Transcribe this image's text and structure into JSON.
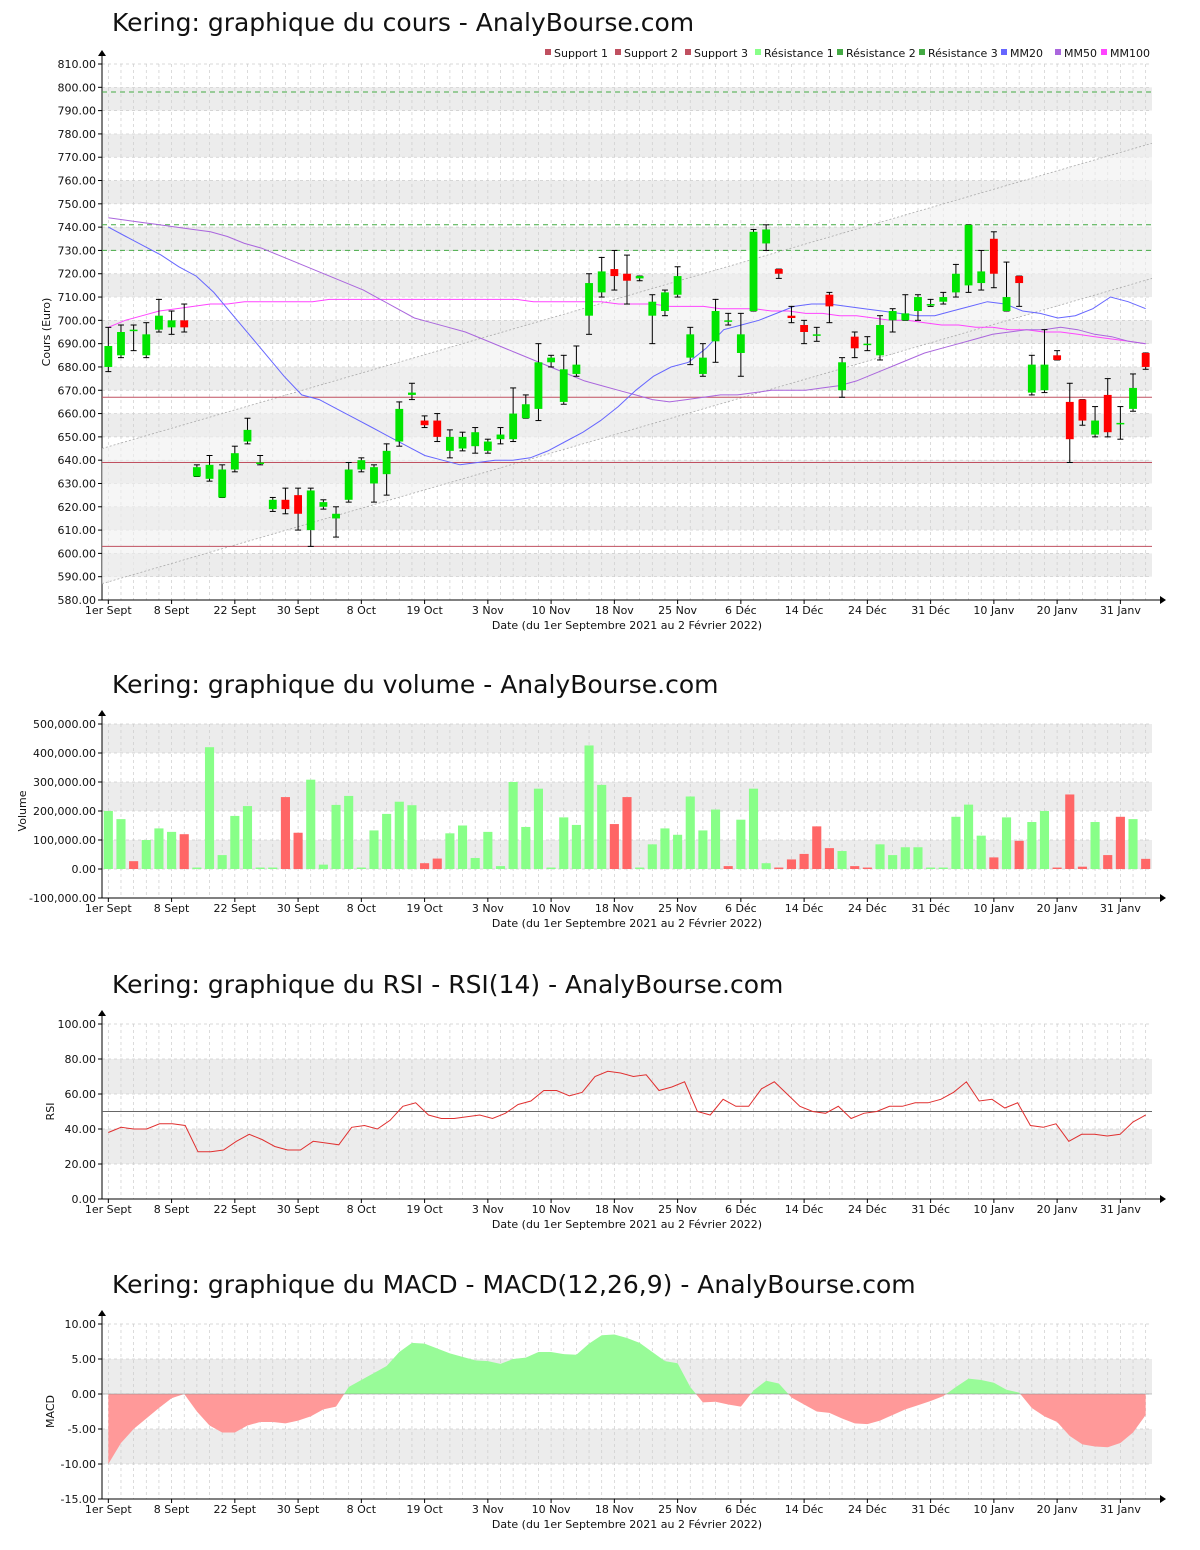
{
  "colors": {
    "up": "#00e400",
    "down": "#ff0000",
    "vol_up": "#88ff88",
    "vol_down": "#ff6666",
    "support": "#c05060",
    "resistance": "#44aa44",
    "mm20": "#6666ff",
    "mm50": "#aa66dd",
    "mm100": "#ff44ff",
    "rsi": "#e03030",
    "macd_pos": "#98fb98",
    "macd_neg": "#ff9999",
    "band_shade": "#ececec",
    "grid": "#cccccc"
  },
  "date_labels": [
    "1er Sept",
    "8 Sept",
    "22 Sept",
    "30 Sept",
    "8 Oct",
    "19 Oct",
    "3 Nov",
    "10 Nov",
    "18 Nov",
    "25 Nov",
    "6 Déc",
    "14 Déc",
    "24 Déc",
    "31 Déc",
    "10 Janv",
    "20 Janv",
    "31 Janv"
  ],
  "date_label_index": [
    0,
    5,
    10,
    15,
    20,
    25,
    30,
    35,
    40,
    45,
    50,
    55,
    60,
    65,
    70,
    75,
    80
  ],
  "xlabel": "Date (du 1er Septembre 2021 au 2 Février 2022)",
  "chart_data": [
    {
      "type": "candlestick",
      "title": "Kering: graphique du cours - AnalyBourse.com",
      "ylabel": "Cours (Euro)",
      "ylim": [
        580,
        810
      ],
      "yticks": [
        "580.00",
        "590.00",
        "600.00",
        "610.00",
        "620.00",
        "630.00",
        "640.00",
        "650.00",
        "660.00",
        "670.00",
        "680.00",
        "690.00",
        "700.00",
        "710.00",
        "720.00",
        "730.00",
        "740.00",
        "750.00",
        "760.00",
        "770.00",
        "780.00",
        "790.00",
        "800.00",
        "810.00"
      ],
      "legend": [
        "Support 1",
        "Support 2",
        "Support 3",
        "Résistance 1",
        "Résistance 2",
        "Résistance 3",
        "MM20",
        "MM50",
        "MM100"
      ],
      "legend_placement": "top-right",
      "support_levels": [
        667,
        639,
        603
      ],
      "resistance_levels": [
        730,
        741,
        798
      ],
      "trend_channel": {
        "lower": [
          587,
          718
        ],
        "upper": [
          645,
          776
        ]
      },
      "candles": [
        {
          "o": 680,
          "c": 689,
          "h": 697,
          "l": 678
        },
        {
          "o": 685,
          "c": 695,
          "h": 698,
          "l": 684
        },
        {
          "o": 696,
          "c": 696,
          "h": 698,
          "l": 687
        },
        {
          "o": 685,
          "c": 694,
          "h": 699,
          "l": 684
        },
        {
          "o": 696,
          "c": 702,
          "h": 709,
          "l": 695
        },
        {
          "o": 697,
          "c": 700,
          "h": 704,
          "l": 694
        },
        {
          "o": 700,
          "c": 697,
          "h": 707,
          "l": 695
        },
        {
          "o": 633,
          "c": 637,
          "h": 638,
          "l": 633
        },
        {
          "o": 632,
          "c": 638,
          "h": 642,
          "l": 631
        },
        {
          "o": 624,
          "c": 636,
          "h": 638,
          "l": 624
        },
        {
          "o": 636,
          "c": 643,
          "h": 646,
          "l": 635
        },
        {
          "o": 648,
          "c": 653,
          "h": 658,
          "l": 647
        },
        {
          "o": 639,
          "c": 639,
          "h": 642,
          "l": 638
        },
        {
          "o": 619,
          "c": 623,
          "h": 624,
          "l": 618
        },
        {
          "o": 623,
          "c": 619,
          "h": 628,
          "l": 617
        },
        {
          "o": 625,
          "c": 617,
          "h": 628,
          "l": 610
        },
        {
          "o": 610,
          "c": 627,
          "h": 628,
          "l": 603
        },
        {
          "o": 620,
          "c": 622,
          "h": 623,
          "l": 619
        },
        {
          "o": 615,
          "c": 617,
          "h": 620,
          "l": 607
        },
        {
          "o": 623,
          "c": 636,
          "h": 639,
          "l": 622
        },
        {
          "o": 636,
          "c": 640,
          "h": 641,
          "l": 635
        },
        {
          "o": 630,
          "c": 637,
          "h": 638,
          "l": 622
        },
        {
          "o": 634,
          "c": 644,
          "h": 647,
          "l": 625
        },
        {
          "o": 648,
          "c": 662,
          "h": 665,
          "l": 646
        },
        {
          "o": 668,
          "c": 669,
          "h": 673,
          "l": 666
        },
        {
          "o": 657,
          "c": 655,
          "h": 659,
          "l": 654
        },
        {
          "o": 657,
          "c": 650,
          "h": 660,
          "l": 648
        },
        {
          "o": 644,
          "c": 650,
          "h": 653,
          "l": 641
        },
        {
          "o": 645,
          "c": 650,
          "h": 652,
          "l": 644
        },
        {
          "o": 646,
          "c": 652,
          "h": 654,
          "l": 643
        },
        {
          "o": 644,
          "c": 648,
          "h": 649,
          "l": 643
        },
        {
          "o": 649,
          "c": 651,
          "h": 654,
          "l": 647
        },
        {
          "o": 649,
          "c": 660,
          "h": 671,
          "l": 648
        },
        {
          "o": 658,
          "c": 664,
          "h": 668,
          "l": 658
        },
        {
          "o": 662,
          "c": 682,
          "h": 690,
          "l": 657
        },
        {
          "o": 682,
          "c": 684,
          "h": 685,
          "l": 680
        },
        {
          "o": 665,
          "c": 679,
          "h": 685,
          "l": 664
        },
        {
          "o": 677,
          "c": 681,
          "h": 689,
          "l": 676
        },
        {
          "o": 702,
          "c": 716,
          "h": 720,
          "l": 694
        },
        {
          "o": 712,
          "c": 721,
          "h": 727,
          "l": 710
        },
        {
          "o": 722,
          "c": 719,
          "h": 730,
          "l": 713
        },
        {
          "o": 720,
          "c": 717,
          "h": 728,
          "l": 707
        },
        {
          "o": 718,
          "c": 719,
          "h": 719,
          "l": 717
        },
        {
          "o": 702,
          "c": 708,
          "h": 711,
          "l": 690
        },
        {
          "o": 704,
          "c": 712,
          "h": 713,
          "l": 702
        },
        {
          "o": 711,
          "c": 719,
          "h": 723,
          "l": 710
        },
        {
          "o": 684,
          "c": 694,
          "h": 697,
          "l": 681
        },
        {
          "o": 677,
          "c": 684,
          "h": 690,
          "l": 676
        },
        {
          "o": 691,
          "c": 704,
          "h": 709,
          "l": 682
        },
        {
          "o": 700,
          "c": 700,
          "h": 703,
          "l": 698
        },
        {
          "o": 686,
          "c": 694,
          "h": 703,
          "l": 676
        },
        {
          "o": 704,
          "c": 738,
          "h": 739,
          "l": 704
        },
        {
          "o": 733,
          "c": 739,
          "h": 741,
          "l": 730
        },
        {
          "o": 722,
          "c": 720,
          "h": 722,
          "l": 718
        },
        {
          "o": 702,
          "c": 701,
          "h": 706,
          "l": 699
        },
        {
          "o": 698,
          "c": 695,
          "h": 700,
          "l": 690
        },
        {
          "o": 694,
          "c": 694,
          "h": 697,
          "l": 691
        },
        {
          "o": 711,
          "c": 706,
          "h": 712,
          "l": 699
        },
        {
          "o": 670,
          "c": 682,
          "h": 684,
          "l": 667
        },
        {
          "o": 693,
          "c": 688,
          "h": 695,
          "l": 684
        },
        {
          "o": 690,
          "c": 690,
          "h": 693,
          "l": 687
        },
        {
          "o": 685,
          "c": 698,
          "h": 702,
          "l": 683
        },
        {
          "o": 700,
          "c": 704,
          "h": 705,
          "l": 695
        },
        {
          "o": 700,
          "c": 703,
          "h": 711,
          "l": 700
        },
        {
          "o": 704,
          "c": 710,
          "h": 711,
          "l": 700
        },
        {
          "o": 707,
          "c": 707,
          "h": 709,
          "l": 706
        },
        {
          "o": 708,
          "c": 710,
          "h": 712,
          "l": 707
        },
        {
          "o": 712,
          "c": 720,
          "h": 724,
          "l": 710
        },
        {
          "o": 715,
          "c": 741,
          "h": 741,
          "l": 712
        },
        {
          "o": 716,
          "c": 721,
          "h": 730,
          "l": 713
        },
        {
          "o": 735,
          "c": 720,
          "h": 738,
          "l": 714
        },
        {
          "o": 704,
          "c": 710,
          "h": 725,
          "l": 704
        },
        {
          "o": 719,
          "c": 716,
          "h": 719,
          "l": 706
        },
        {
          "o": 669,
          "c": 681,
          "h": 685,
          "l": 668
        },
        {
          "o": 670,
          "c": 681,
          "h": 696,
          "l": 669
        },
        {
          "o": 685,
          "c": 683,
          "h": 687,
          "l": 683
        },
        {
          "o": 665,
          "c": 649,
          "h": 673,
          "l": 639
        },
        {
          "o": 666,
          "c": 657,
          "h": 666,
          "l": 655
        },
        {
          "o": 651,
          "c": 657,
          "h": 663,
          "l": 650
        },
        {
          "o": 668,
          "c": 652,
          "h": 675,
          "l": 650
        },
        {
          "o": 656,
          "c": 656,
          "h": 663,
          "l": 649
        },
        {
          "o": 662,
          "c": 671,
          "h": 677,
          "l": 661
        },
        {
          "o": 686,
          "c": 680,
          "h": 686,
          "l": 679
        }
      ],
      "mm20": [
        740,
        736,
        732,
        728,
        723,
        719,
        712,
        703,
        694,
        685,
        676,
        668,
        666,
        662,
        658,
        654,
        650,
        646,
        642,
        640,
        638,
        639,
        640,
        640,
        641,
        644,
        648,
        652,
        657,
        663,
        670,
        676,
        680,
        682,
        688,
        696,
        698,
        700,
        703,
        706,
        707,
        707,
        706,
        705,
        704,
        703,
        702,
        702,
        704,
        706,
        708,
        707,
        704,
        703,
        701,
        702,
        705,
        710,
        708,
        705
      ],
      "mm20_start": 0,
      "mm50": [
        744,
        743,
        742,
        741,
        740,
        739,
        738,
        736,
        733,
        731,
        728,
        725,
        722,
        719,
        716,
        713,
        709,
        705,
        701,
        699,
        697,
        695,
        692,
        689,
        686,
        683,
        680,
        677,
        674,
        672,
        670,
        668,
        666,
        665,
        666,
        667,
        668,
        668,
        669,
        670,
        670,
        670,
        671,
        672,
        674,
        677,
        680,
        683,
        686,
        688,
        690,
        692,
        694,
        695,
        696,
        696,
        697,
        696,
        694,
        693,
        691,
        690
      ],
      "mm100": [
        697,
        700,
        702,
        704,
        705,
        706,
        707,
        707,
        708,
        708,
        708,
        708,
        708,
        709,
        709,
        709,
        709,
        709,
        709,
        709,
        709,
        709,
        709,
        709,
        709,
        708,
        708,
        708,
        708,
        708,
        707,
        707,
        707,
        706,
        706,
        706,
        705,
        705,
        705,
        704,
        704,
        703,
        703,
        702,
        702,
        701,
        700,
        700,
        699,
        698,
        698,
        697,
        697,
        696,
        696,
        695,
        695,
        694,
        693,
        692,
        691,
        690
      ],
      "sma_step": 1.35
    },
    {
      "type": "bar",
      "title": "Kering: graphique du volume - AnalyBourse.com",
      "ylabel": "Volume",
      "ylim": [
        -100000,
        500000
      ],
      "yticks": [
        "-100,000.00",
        "0.00",
        "100,000.00",
        "200,000.00",
        "300,000.00",
        "400,000.00",
        "500,000.00"
      ],
      "values": [
        200000,
        172000,
        27000,
        100000,
        140000,
        128000,
        120000,
        5000,
        420000,
        48000,
        183000,
        217000,
        5000,
        5000,
        248000,
        125000,
        308000,
        15000,
        221000,
        252000,
        5000,
        133000,
        190000,
        232000,
        220000,
        20000,
        36000,
        123000,
        150000,
        38000,
        128000,
        10000,
        300000,
        145000,
        277000,
        5000,
        178000,
        152000,
        426000,
        290000,
        155000,
        248000,
        5000,
        85000,
        140000,
        118000,
        250000,
        133000,
        205000,
        10000,
        170000,
        277000,
        20000,
        5000,
        33000,
        52000,
        147000,
        72000,
        62000,
        10000,
        5000,
        85000,
        48000,
        75000,
        75000,
        5000,
        5000,
        180000,
        222000,
        115000,
        40000,
        178000,
        97000,
        162000,
        200000,
        5000,
        257000,
        8000,
        162000,
        48000,
        180000,
        172000,
        35000
      ],
      "directions": [
        "u",
        "u",
        "d",
        "u",
        "u",
        "u",
        "d",
        "u",
        "u",
        "u",
        "u",
        "u",
        "u",
        "u",
        "d",
        "d",
        "u",
        "u",
        "u",
        "u",
        "u",
        "u",
        "u",
        "u",
        "u",
        "d",
        "d",
        "u",
        "u",
        "u",
        "u",
        "u",
        "u",
        "u",
        "u",
        "u",
        "u",
        "u",
        "u",
        "u",
        "d",
        "d",
        "u",
        "u",
        "u",
        "u",
        "u",
        "u",
        "u",
        "d",
        "u",
        "u",
        "u",
        "d",
        "d",
        "d",
        "d",
        "d",
        "u",
        "d",
        "d",
        "u",
        "u",
        "u",
        "u",
        "u",
        "u",
        "u",
        "u",
        "u",
        "d",
        "u",
        "d",
        "u",
        "u",
        "d",
        "d",
        "d",
        "u",
        "d",
        "d",
        "u",
        "d"
      ]
    },
    {
      "type": "line",
      "title": "Kering: graphique du RSI - RSI(14) - AnalyBourse.com",
      "ylabel": "RSI",
      "ylim": [
        0,
        100
      ],
      "yticks": [
        "0.00",
        "20.00",
        "40.00",
        "60.00",
        "80.00",
        "100.00"
      ],
      "reference": 50,
      "values": [
        38,
        41,
        40,
        40,
        43,
        43,
        42,
        27,
        27,
        28,
        33,
        37,
        34,
        30,
        28,
        28,
        33,
        32,
        31,
        41,
        42,
        40,
        45,
        53,
        55,
        48,
        46,
        46,
        47,
        48,
        46,
        49,
        54,
        56,
        62,
        62,
        59,
        61,
        70,
        73,
        72,
        70,
        71,
        62,
        64,
        67,
        50,
        48,
        57,
        53,
        53,
        63,
        67,
        60,
        53,
        50,
        49,
        53,
        46,
        49,
        50,
        53,
        53,
        55,
        55,
        57,
        61,
        67,
        56,
        57,
        52,
        55,
        42,
        41,
        43,
        33,
        37,
        37,
        36,
        37,
        44,
        48
      ],
      "color": "red"
    },
    {
      "type": "area",
      "title": "Kering: graphique du MACD - MACD(12,26,9) - AnalyBourse.com",
      "ylabel": "MACD",
      "ylim": [
        -15,
        10
      ],
      "yticks": [
        "-15.00",
        "-10.00",
        "-5.00",
        "0.00",
        "5.00",
        "10.00"
      ],
      "values": [
        -10,
        -7,
        -5,
        -3.5,
        -2,
        -0.6,
        0,
        -2.5,
        -4.5,
        -5.5,
        -5.5,
        -4.5,
        -4,
        -4,
        -4.2,
        -3.8,
        -3.2,
        -2.2,
        -1.8,
        1,
        2,
        3,
        4,
        6,
        7.3,
        7.2,
        6.5,
        5.8,
        5.3,
        4.8,
        4.7,
        4.3,
        5,
        5.2,
        6,
        6,
        5.7,
        5.6,
        7.2,
        8.4,
        8.5,
        8,
        7.3,
        6,
        4.7,
        4.4,
        1,
        -1.2,
        -1.1,
        -1.5,
        -1.8,
        0.5,
        1.9,
        1.5,
        -0.5,
        -1.5,
        -2.5,
        -2.7,
        -3.5,
        -4.2,
        -4.3,
        -3.8,
        -3,
        -2.2,
        -1.6,
        -1,
        -0.3,
        1,
        2.2,
        2,
        1.6,
        0.6,
        0.2,
        -2,
        -3.2,
        -4,
        -6,
        -7.2,
        -7.5,
        -7.6,
        -7,
        -5.5,
        -3
      ]
    }
  ]
}
